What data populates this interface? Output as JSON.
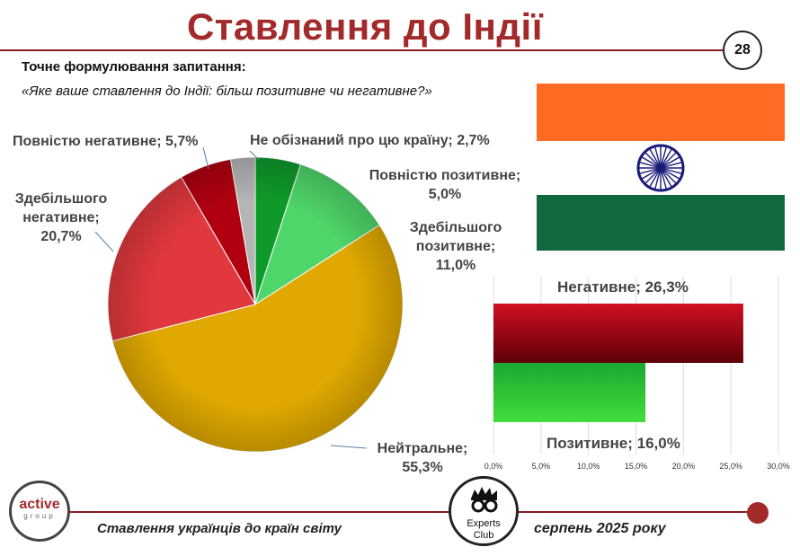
{
  "header": {
    "title": "Ставлення до Індії",
    "page_number": "28"
  },
  "question": {
    "label": "Точне формулювання запитання:",
    "text": "«Яке ваше ставлення до Індії: більш позитивне чи негативне?»"
  },
  "colors": {
    "title": "#a32a2a",
    "flag_saffron": "#ff6b22",
    "flag_green": "#12683f",
    "chakra": "#1a1a7a"
  },
  "chart_data": [
    {
      "type": "pie",
      "slices": [
        {
          "label": "Повністю позитивне",
          "value": 5.0,
          "display": "5,0%",
          "color": "#0e9a2a"
        },
        {
          "label": "Здебільшого позитивне",
          "value": 11.0,
          "display": "11,0%",
          "color": "#4fd66a"
        },
        {
          "label": "Нейтральне",
          "value": 55.3,
          "display": "55,3%",
          "color": "#e0a800"
        },
        {
          "label": "Здебільшого негативне",
          "value": 20.7,
          "display": "20,7%",
          "color": "#e0383c"
        },
        {
          "label": "Повністю негативне",
          "value": 5.7,
          "display": "5,7%",
          "color": "#b00010"
        },
        {
          "label": "Не обізнаний про цю країну",
          "value": 2.7,
          "display": "2,7%",
          "color": "#b5b5b5"
        }
      ],
      "labels": {
        "full_positive": [
          "Повністю позитивне;",
          "5,0%"
        ],
        "mostly_positive": [
          "Здебільшого",
          "позитивне;",
          "11,0%"
        ],
        "neutral": [
          "Нейтральне;",
          "55,3%"
        ],
        "mostly_negative": [
          "Здебільшого",
          "негативне;",
          "20,7%"
        ],
        "full_negative": "Повністю негативне; 5,7%",
        "unaware": "Не обізнаний про цю країну; 2,7%"
      }
    },
    {
      "type": "bar",
      "orientation": "horizontal",
      "categories": [
        "Негативне",
        "Позитивне"
      ],
      "values": [
        26.3,
        16.0
      ],
      "labels": [
        "Негативне; 26,3%",
        "Позитивне; 16,0%"
      ],
      "colors": [
        "#a00010",
        "#22b52a"
      ],
      "xlim": [
        0,
        30
      ],
      "ticks": [
        "0,0%",
        "5,0%",
        "10,0%",
        "15,0%",
        "20,0%",
        "25,0%",
        "30,0%"
      ],
      "grid": true
    }
  ],
  "footer": {
    "logo_main": "active",
    "logo_sub": "group",
    "left_text": "Ставлення українців до країн світу",
    "experts_line1": "Experts",
    "experts_line2": "Club",
    "right_text": "серпень 2025 року"
  }
}
